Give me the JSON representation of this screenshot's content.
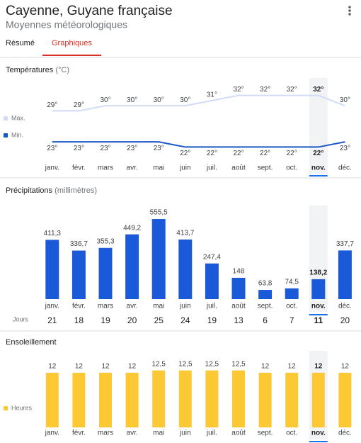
{
  "header": {
    "title": "Cayenne, Guyane française",
    "subtitle": "Moyennes météorologiques"
  },
  "tabs": [
    "Résumé",
    "Graphiques"
  ],
  "active_tab": 1,
  "chart_data": [
    {
      "type": "line",
      "title": "Températures",
      "unit": "(°C)",
      "categories": [
        "janv.",
        "févr.",
        "mars",
        "avr.",
        "mai",
        "juin",
        "juil.",
        "août",
        "sept.",
        "oct.",
        "nov.",
        "déc."
      ],
      "selected_index": 10,
      "ylim": [
        20,
        34
      ],
      "series": [
        {
          "name": "Max.",
          "color": "#d2dcf7",
          "values": [
            29,
            29,
            30,
            30,
            30,
            30,
            31,
            32,
            32,
            32,
            32,
            30
          ],
          "value_labels": [
            "29°",
            "29°",
            "30°",
            "30°",
            "30°",
            "30°",
            "31°",
            "32°",
            "32°",
            "32°",
            "32°",
            "30°"
          ]
        },
        {
          "name": "Min.",
          "color": "#1a57c6",
          "values": [
            23,
            23,
            23,
            23,
            23,
            22,
            22,
            22,
            22,
            22,
            22,
            23
          ],
          "value_labels": [
            "23°",
            "23°",
            "23°",
            "23°",
            "23°",
            "22°",
            "22°",
            "22°",
            "22°",
            "22°",
            "22°",
            "23°"
          ]
        }
      ]
    },
    {
      "type": "bar",
      "title": "Précipitations",
      "unit": "(millimètres)",
      "categories": [
        "janv.",
        "févr.",
        "mars",
        "avr.",
        "mai",
        "juin",
        "juil.",
        "août",
        "sept.",
        "oct.",
        "nov.",
        "déc."
      ],
      "selected_index": 10,
      "ylim": [
        0,
        600
      ],
      "color": "#1a5ad9",
      "values": [
        411.3,
        336.7,
        355.3,
        449.2,
        555.5,
        413.7,
        247.4,
        148,
        63.8,
        74.5,
        138.2,
        337.7
      ],
      "value_labels": [
        "411,3",
        "336,7",
        "355,3",
        "449,2",
        "555,5",
        "413,7",
        "247,4",
        "148",
        "63,8",
        "74,5",
        "138,2",
        "337,7"
      ],
      "days": {
        "label": "Jours",
        "values": [
          21,
          18,
          19,
          20,
          25,
          24,
          19,
          13,
          6,
          7,
          11,
          20
        ]
      }
    },
    {
      "type": "bar",
      "title": "Ensoleillement",
      "categories": [
        "janv.",
        "févr.",
        "mars",
        "avr.",
        "mai",
        "juin",
        "juil.",
        "août",
        "sept.",
        "oct.",
        "nov.",
        "déc."
      ],
      "selected_index": 10,
      "ylim": [
        0,
        14
      ],
      "series": [
        {
          "name": "Heures",
          "color": "#fcc934",
          "values": [
            12,
            12,
            12,
            12,
            12.5,
            12.5,
            12.5,
            12.5,
            12,
            12,
            12,
            12
          ],
          "value_labels": [
            "12",
            "12",
            "12",
            "12",
            "12,5",
            "12,5",
            "12,5",
            "12,5",
            "12",
            "12",
            "12",
            "12"
          ]
        }
      ]
    }
  ]
}
